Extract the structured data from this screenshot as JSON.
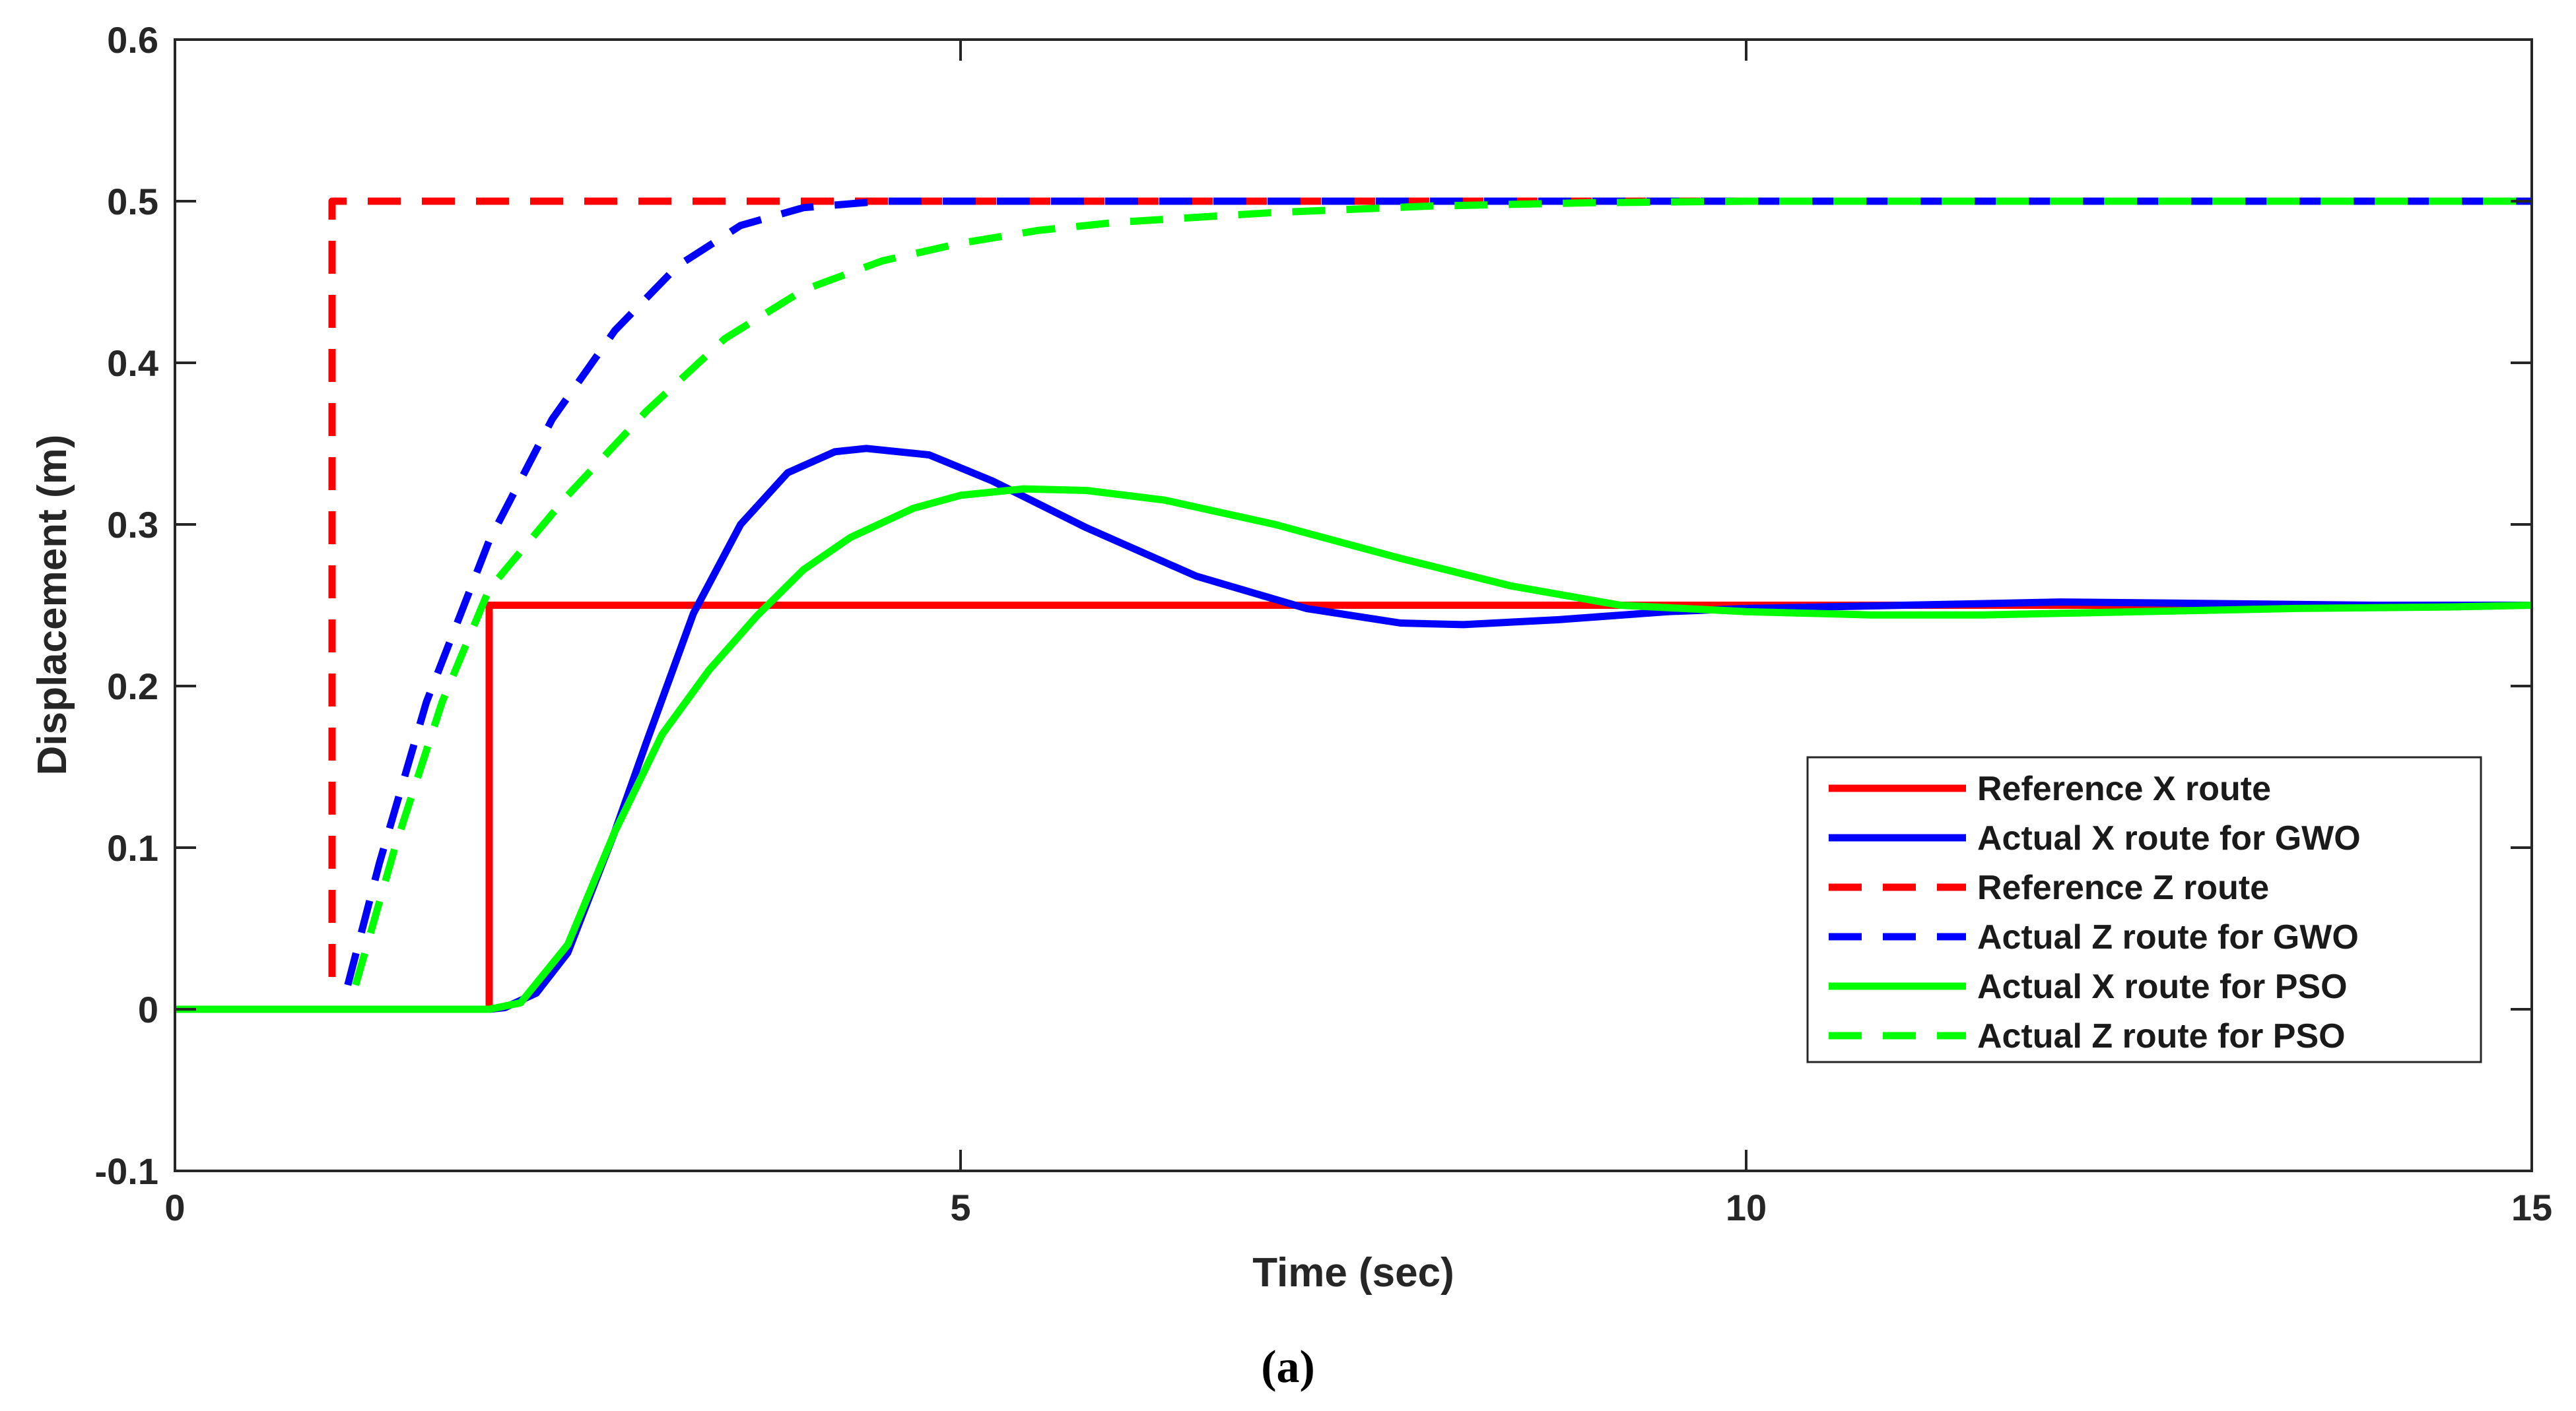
{
  "chart_data": {
    "type": "line",
    "xlabel": "Time (sec)",
    "ylabel": "Displacement (m)",
    "xlim": [
      0,
      15
    ],
    "ylim": [
      -0.1,
      0.6
    ],
    "xticks": [
      0,
      5,
      10,
      15
    ],
    "xtick_labels": [
      "0",
      "5",
      "10",
      "15"
    ],
    "yticks": [
      -0.1,
      0,
      0.1,
      0.2,
      0.3,
      0.4,
      0.5,
      0.6
    ],
    "ytick_labels": [
      "-0.1",
      "0",
      "0.1",
      "0.2",
      "0.3",
      "0.4",
      "0.5",
      "0.6"
    ],
    "grid": false,
    "legend_position": "lower-right",
    "caption": "(a)",
    "series": [
      {
        "name": "Reference X route",
        "color": "#ff0000",
        "style": "solid",
        "x": [
          0,
          2.0,
          2.0,
          15
        ],
        "y": [
          0,
          0,
          0.25,
          0.25
        ]
      },
      {
        "name": "Actual X route for GWO",
        "color": "#0000ff",
        "style": "solid",
        "x": [
          0,
          2.0,
          2.1,
          2.3,
          2.5,
          2.8,
          3.0,
          3.3,
          3.6,
          3.9,
          4.2,
          4.4,
          4.8,
          5.2,
          5.8,
          6.5,
          7.2,
          7.8,
          8.2,
          8.8,
          9.5,
          10.0,
          11.0,
          12.0,
          13.0,
          14.0,
          15.0
        ],
        "y": [
          0,
          0,
          0.001,
          0.01,
          0.035,
          0.11,
          0.165,
          0.245,
          0.3,
          0.332,
          0.345,
          0.347,
          0.343,
          0.327,
          0.298,
          0.268,
          0.248,
          0.239,
          0.238,
          0.241,
          0.246,
          0.248,
          0.25,
          0.252,
          0.251,
          0.25,
          0.25
        ]
      },
      {
        "name": "Reference Z route",
        "color": "#ff0000",
        "style": "dashed",
        "x": [
          1.0,
          1.0,
          15
        ],
        "y": [
          0.02,
          0.5,
          0.5
        ]
      },
      {
        "name": "Actual Z route for GWO",
        "color": "#0000ff",
        "style": "dashed",
        "x": [
          1.1,
          1.3,
          1.6,
          2.0,
          2.4,
          2.8,
          3.2,
          3.6,
          4.0,
          4.5,
          5.0,
          6.0,
          8.0,
          10.0,
          12.0,
          15.0
        ],
        "y": [
          0.015,
          0.09,
          0.19,
          0.29,
          0.365,
          0.42,
          0.46,
          0.485,
          0.496,
          0.5,
          0.5,
          0.5,
          0.5,
          0.5,
          0.5,
          0.5
        ]
      },
      {
        "name": "Actual X route for PSO",
        "color": "#00ff00",
        "style": "solid",
        "x": [
          0,
          2.0,
          2.2,
          2.5,
          2.8,
          3.1,
          3.4,
          3.7,
          4.0,
          4.3,
          4.7,
          5.0,
          5.4,
          5.8,
          6.3,
          7.0,
          7.8,
          8.5,
          9.2,
          10.0,
          10.8,
          11.5,
          12.5,
          13.5,
          14.5,
          15.0
        ],
        "y": [
          0,
          0,
          0.004,
          0.04,
          0.11,
          0.17,
          0.21,
          0.243,
          0.272,
          0.292,
          0.31,
          0.318,
          0.322,
          0.321,
          0.315,
          0.3,
          0.279,
          0.262,
          0.25,
          0.246,
          0.244,
          0.244,
          0.246,
          0.248,
          0.249,
          0.25
        ]
      },
      {
        "name": "Actual Z route for PSO",
        "color": "#00ff00",
        "style": "dashed",
        "x": [
          1.15,
          1.4,
          1.7,
          2.0,
          2.5,
          3.0,
          3.5,
          4.0,
          4.5,
          5.0,
          5.5,
          6.0,
          7.0,
          8.0,
          9.0,
          10.0,
          12.0,
          15.0
        ],
        "y": [
          0.015,
          0.1,
          0.19,
          0.26,
          0.318,
          0.37,
          0.415,
          0.445,
          0.463,
          0.474,
          0.482,
          0.487,
          0.493,
          0.497,
          0.499,
          0.5,
          0.5,
          0.5
        ]
      }
    ]
  }
}
